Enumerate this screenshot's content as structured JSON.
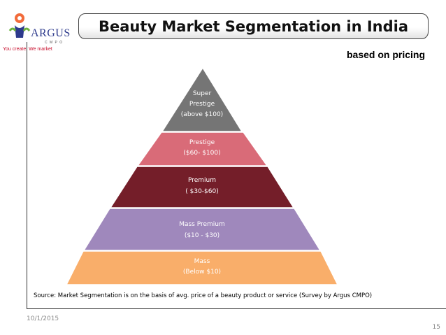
{
  "logo": {
    "name": "ARGUS",
    "sub": "C M P O",
    "tagline": "You create. We market",
    "icon": "argus-logo-icon"
  },
  "slide": {
    "title": "Beauty Market Segmentation in India",
    "subtitle": "based on pricing",
    "source": "Source: Market Segmentation is on the basis of  avg. price of a beauty product or service (Survey by Argus CMPO)",
    "date": "10/1/2015",
    "page": "15"
  },
  "pyramid": {
    "tiers": [
      {
        "id": "super-prestige",
        "lines": [
          "Super",
          "Prestige",
          "(above  $100)"
        ],
        "color": "#757575"
      },
      {
        "id": "prestige",
        "lines": [
          "Prestige",
          "($60- $100)"
        ],
        "color": "#d96b78"
      },
      {
        "id": "premium",
        "lines": [
          "Premium",
          "( $30-$60)"
        ],
        "color": "#741e29"
      },
      {
        "id": "mass-premium",
        "lines": [
          "Mass Premium",
          "($10 - $30)"
        ],
        "color": "#9f88bc"
      },
      {
        "id": "mass",
        "lines": [
          "Mass",
          "(Below $10)"
        ],
        "color": "#f9ae6a"
      }
    ]
  }
}
